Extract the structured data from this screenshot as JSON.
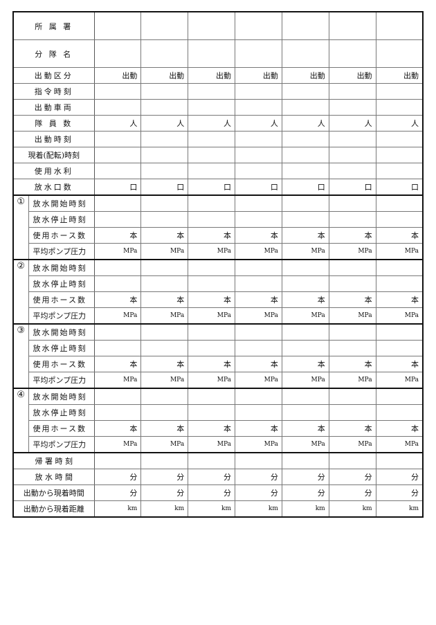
{
  "columns": 7,
  "top_rows": [
    {
      "label": "所 属 署",
      "unit": "",
      "tall": true
    },
    {
      "label": "分 隊 名",
      "unit": "",
      "tall": true
    },
    {
      "label": "出動区分",
      "unit": "出動"
    },
    {
      "label": "指令時刻",
      "unit": ""
    },
    {
      "label": "出動車両",
      "unit": ""
    },
    {
      "label": "隊 員 数",
      "unit": "人"
    },
    {
      "label": "出動時刻",
      "unit": ""
    },
    {
      "label": "現着(配転)時刻",
      "unit": ""
    },
    {
      "label": "使用水利",
      "unit": ""
    },
    {
      "label": "放水口数",
      "unit": "口"
    }
  ],
  "groups": [
    {
      "num": "①",
      "rows": [
        {
          "label": "放水開始時刻",
          "unit": ""
        },
        {
          "label": "放水停止時刻",
          "unit": ""
        },
        {
          "label": "使用ホース数",
          "unit": "本"
        },
        {
          "label": "平均ポンプ圧力",
          "unit": "MPa"
        }
      ]
    },
    {
      "num": "②",
      "rows": [
        {
          "label": "放水開始時刻",
          "unit": ""
        },
        {
          "label": "放水停止時刻",
          "unit": ""
        },
        {
          "label": "使用ホース数",
          "unit": "本"
        },
        {
          "label": "平均ポンプ圧力",
          "unit": "MPa"
        }
      ]
    },
    {
      "num": "③",
      "rows": [
        {
          "label": "放水開始時刻",
          "unit": ""
        },
        {
          "label": "放水停止時刻",
          "unit": ""
        },
        {
          "label": "使用ホース数",
          "unit": "本"
        },
        {
          "label": "平均ポンプ圧力",
          "unit": "MPa"
        }
      ]
    },
    {
      "num": "④",
      "rows": [
        {
          "label": "放水開始時刻",
          "unit": ""
        },
        {
          "label": "放水停止時刻",
          "unit": ""
        },
        {
          "label": "使用ホース数",
          "unit": "本"
        },
        {
          "label": "平均ポンプ圧力",
          "unit": "MPa"
        }
      ]
    }
  ],
  "bottom_rows": [
    {
      "label": "帰 署 時 刻",
      "unit": ""
    },
    {
      "label": "放 水 時 間",
      "unit": "分"
    },
    {
      "label": "出動から現着時間",
      "unit": "分"
    },
    {
      "label": "出動から現着距離",
      "unit": "km"
    }
  ]
}
